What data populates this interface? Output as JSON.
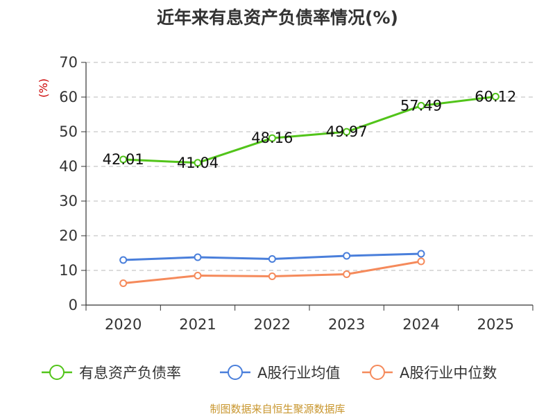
{
  "chart_data": {
    "type": "line",
    "title": "近年来有息资产负债率情况(%)",
    "ylabel": "(%)",
    "xlabel": "",
    "ylim": [
      0,
      70
    ],
    "yticks": [
      0,
      10,
      20,
      30,
      40,
      50,
      60,
      70
    ],
    "categories": [
      "2020",
      "2021",
      "2022",
      "2023",
      "2024",
      "2025"
    ],
    "series": [
      {
        "name": "有息资产负债率",
        "color": "#52c41a",
        "values": [
          42.01,
          41.04,
          48.16,
          49.97,
          57.49,
          60.12
        ],
        "labels": [
          "42.01",
          "41.04",
          "48.16",
          "49.97",
          "57.49",
          "60.12"
        ]
      },
      {
        "name": "A股行业均值",
        "color": "#4a7fdb",
        "values": [
          13.0,
          13.8,
          13.3,
          14.2,
          14.8,
          null
        ]
      },
      {
        "name": "A股行业中位数",
        "color": "#f58a5b",
        "values": [
          6.3,
          8.5,
          8.3,
          8.9,
          12.6,
          null
        ]
      }
    ],
    "grid": true,
    "legend_position": "bottom"
  },
  "footer": {
    "source": "制图数据来自恒生聚源数据库"
  }
}
